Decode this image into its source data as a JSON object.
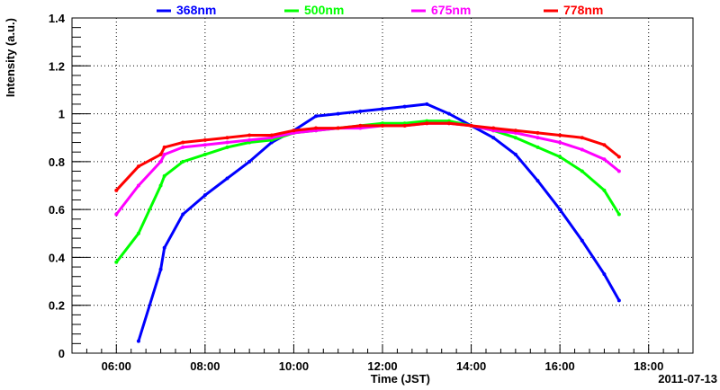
{
  "chart_data": {
    "type": "line",
    "xlabel": "Time (JST)",
    "ylabel": "Intensity (a.u.)",
    "date_label": "2011-07-13",
    "xlim": [
      "05:00",
      "19:00"
    ],
    "ylim": [
      0,
      1.4
    ],
    "x_ticks": [
      "06:00",
      "08:00",
      "10:00",
      "12:00",
      "14:00",
      "16:00",
      "18:00"
    ],
    "y_ticks": [
      "0",
      "0.2",
      "0.4",
      "0.6",
      "0.8",
      "1",
      "1.2",
      "1.4"
    ],
    "grid": true,
    "legend_position": "top",
    "series": [
      {
        "name": "368nm",
        "color": "#0000ff",
        "x": [
          "06:30",
          "07:00",
          "07:05",
          "07:30",
          "08:00",
          "08:30",
          "09:00",
          "09:30",
          "10:00",
          "10:30",
          "11:00",
          "11:30",
          "12:00",
          "12:30",
          "13:00",
          "13:30",
          "14:00",
          "14:30",
          "15:00",
          "15:30",
          "16:00",
          "16:30",
          "17:00",
          "17:20"
        ],
        "values": [
          0.05,
          0.35,
          0.44,
          0.58,
          0.66,
          0.73,
          0.8,
          0.88,
          0.93,
          0.99,
          1.0,
          1.01,
          1.02,
          1.03,
          1.04,
          1.0,
          0.95,
          0.9,
          0.83,
          0.72,
          0.6,
          0.47,
          0.33,
          0.22
        ]
      },
      {
        "name": "500nm",
        "color": "#00ff00",
        "x": [
          "06:00",
          "06:30",
          "07:00",
          "07:05",
          "07:30",
          "08:00",
          "08:30",
          "09:00",
          "09:30",
          "10:00",
          "10:30",
          "11:00",
          "11:30",
          "12:00",
          "12:30",
          "13:00",
          "13:30",
          "14:00",
          "14:30",
          "15:00",
          "15:30",
          "16:00",
          "16:30",
          "17:00",
          "17:20"
        ],
        "values": [
          0.38,
          0.5,
          0.7,
          0.74,
          0.8,
          0.83,
          0.86,
          0.88,
          0.89,
          0.92,
          0.93,
          0.94,
          0.95,
          0.96,
          0.96,
          0.97,
          0.97,
          0.95,
          0.93,
          0.9,
          0.86,
          0.82,
          0.76,
          0.68,
          0.58
        ]
      },
      {
        "name": "675nm",
        "color": "#ff00ff",
        "x": [
          "06:00",
          "06:30",
          "07:00",
          "07:05",
          "07:30",
          "08:00",
          "08:30",
          "09:00",
          "09:30",
          "10:00",
          "10:30",
          "11:00",
          "11:30",
          "12:00",
          "12:30",
          "13:00",
          "13:30",
          "14:00",
          "14:30",
          "15:00",
          "15:30",
          "16:00",
          "16:30",
          "17:00",
          "17:20"
        ],
        "values": [
          0.58,
          0.7,
          0.8,
          0.83,
          0.86,
          0.87,
          0.88,
          0.89,
          0.9,
          0.92,
          0.93,
          0.94,
          0.94,
          0.95,
          0.95,
          0.96,
          0.96,
          0.95,
          0.93,
          0.92,
          0.9,
          0.88,
          0.85,
          0.81,
          0.76
        ]
      },
      {
        "name": "778nm",
        "color": "#ff0000",
        "x": [
          "06:00",
          "06:30",
          "07:00",
          "07:05",
          "07:30",
          "08:00",
          "08:30",
          "09:00",
          "09:30",
          "10:00",
          "10:30",
          "11:00",
          "11:30",
          "12:00",
          "12:30",
          "13:00",
          "13:30",
          "14:00",
          "14:30",
          "15:00",
          "15:30",
          "16:00",
          "16:30",
          "17:00",
          "17:20"
        ],
        "values": [
          0.68,
          0.78,
          0.83,
          0.86,
          0.88,
          0.89,
          0.9,
          0.91,
          0.91,
          0.93,
          0.94,
          0.94,
          0.95,
          0.95,
          0.95,
          0.96,
          0.96,
          0.95,
          0.94,
          0.93,
          0.92,
          0.91,
          0.9,
          0.87,
          0.82
        ]
      }
    ]
  }
}
